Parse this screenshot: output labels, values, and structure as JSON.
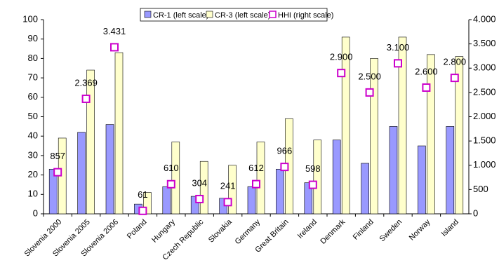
{
  "chart_data": {
    "type": "bar",
    "categories": [
      "Slovenia 2000",
      "Slovenia 2005",
      "Slovenia 2006",
      "Poland",
      "Hungary",
      "Czech Republic",
      "Slovakia",
      "Germany",
      "Great Britain",
      "Ireland",
      "Denmark",
      "Finland",
      "Sweden",
      "Norway",
      "Island"
    ],
    "series": [
      {
        "name": "CR-1 (left scale)",
        "type": "bar",
        "color": "#9999ff",
        "values": [
          23,
          42,
          46,
          5,
          14,
          9,
          8,
          14,
          23,
          16,
          38,
          26,
          45,
          35,
          45
        ]
      },
      {
        "name": "CR-3 (left scale)",
        "type": "bar",
        "color": "#ffffcc",
        "values": [
          39,
          74,
          83,
          11,
          37,
          27,
          25,
          37,
          49,
          38,
          91,
          80,
          91,
          82,
          81
        ]
      },
      {
        "name": "HHI (right scale)",
        "type": "marker",
        "axis": "y2",
        "color": "#cc00cc",
        "values": [
          857,
          2369,
          3431,
          61,
          610,
          304,
          241,
          612,
          966,
          598,
          2900,
          2500,
          3100,
          2600,
          2800
        ],
        "value_labels": [
          "857",
          "2.369",
          "3.431",
          "61",
          "610",
          "304",
          "241",
          "612",
          "966",
          "598",
          "2.900",
          "2.500",
          "3.100",
          "2.600",
          "2.800"
        ]
      }
    ],
    "ylim": [
      0,
      100
    ],
    "yticks": [
      0,
      10,
      20,
      30,
      40,
      50,
      60,
      70,
      80,
      90,
      100
    ],
    "y2lim": [
      0,
      4000
    ],
    "y2ticks": [
      0,
      500,
      {
        "value": 1000,
        "label": "1.000"
      },
      {
        "value": 1500,
        "label": "1.500"
      },
      {
        "value": 2000,
        "label": "2.000"
      },
      {
        "value": 2500,
        "label": "2.500"
      },
      {
        "value": 3000,
        "label": "3.000"
      },
      {
        "value": 3500,
        "label": "3.500"
      },
      {
        "value": 4000,
        "label": "4.000"
      }
    ],
    "legend": "top"
  }
}
